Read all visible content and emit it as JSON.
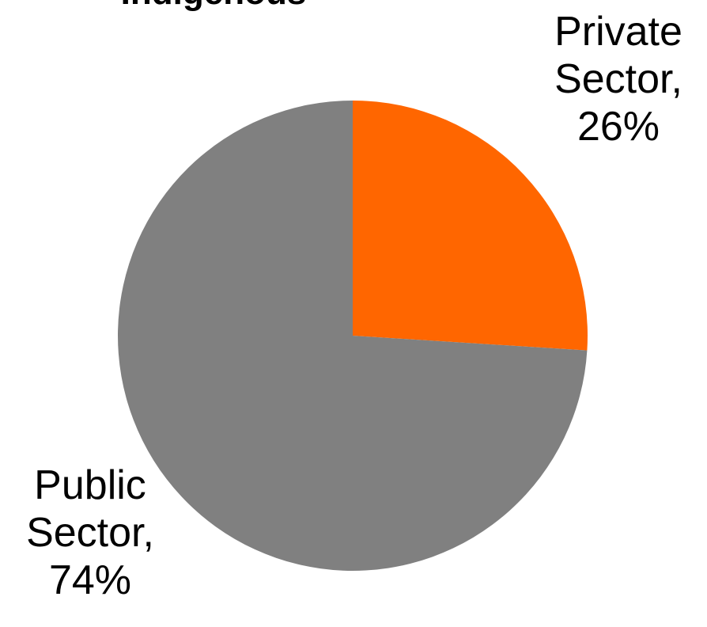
{
  "chart_data": {
    "type": "pie",
    "title": "Indigenous",
    "slices": [
      {
        "label_line1": "Private",
        "label_line2": "Sector,",
        "label_line3": "26%",
        "value": 26,
        "color": "#ff6600"
      },
      {
        "label_line1": "Public",
        "label_line2": "Sector,",
        "label_line3": "74%",
        "value": 74,
        "color": "#808080"
      }
    ],
    "start_angle_deg": 0,
    "direction": "clockwise",
    "legend": "none"
  }
}
